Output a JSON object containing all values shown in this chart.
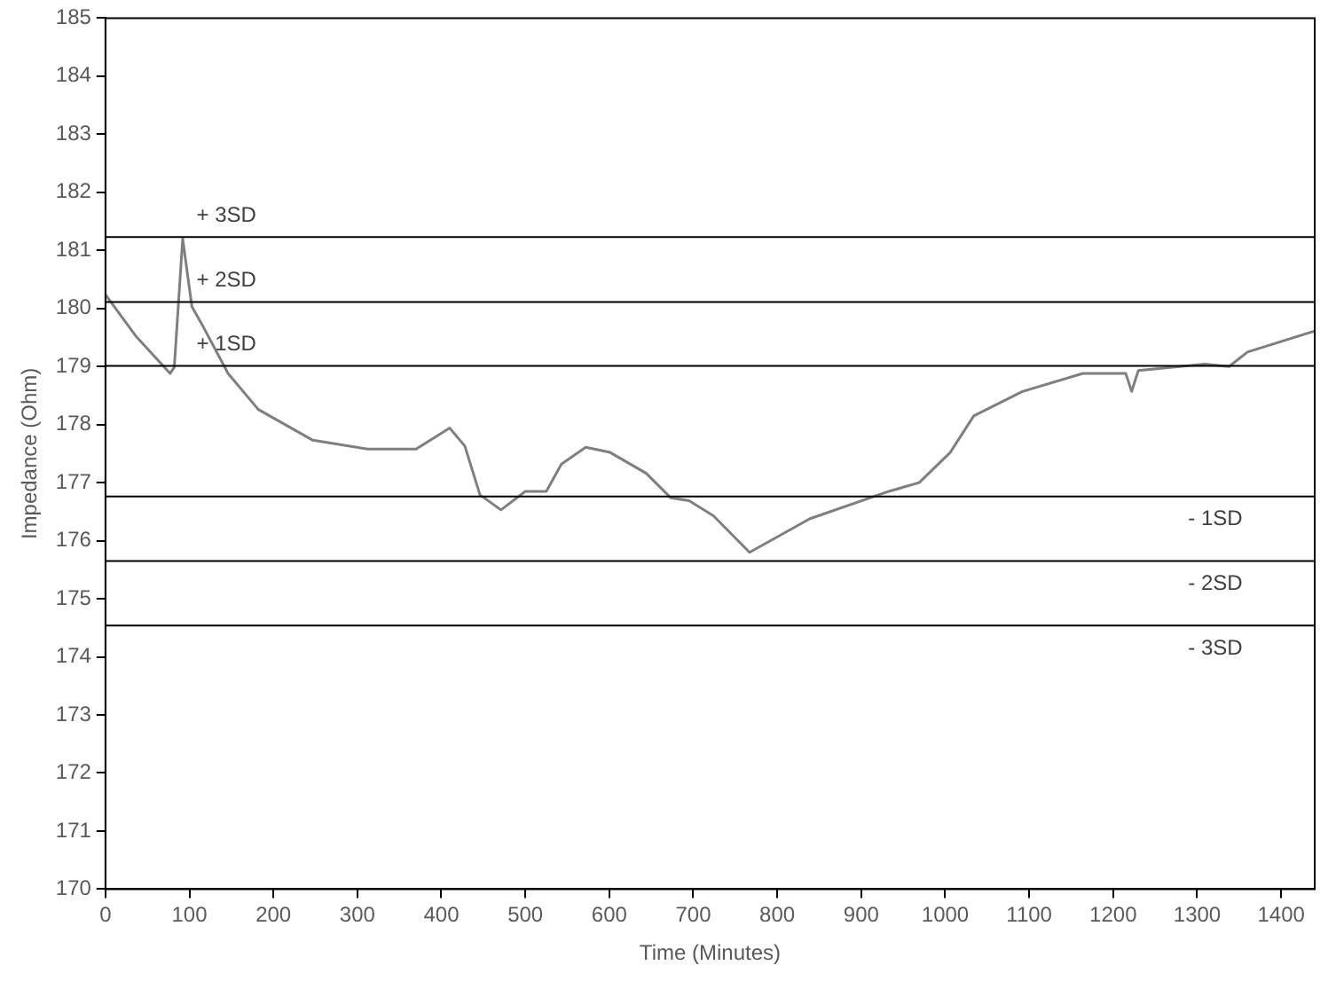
{
  "chart_data": {
    "type": "line",
    "xlabel": "Time (Minutes)",
    "ylabel": "Impedance (Ohm)",
    "x": [
      0,
      37,
      77,
      82,
      92,
      103,
      117,
      146,
      182,
      247,
      312,
      370,
      410,
      428,
      446,
      471,
      500,
      525,
      543,
      572,
      601,
      644,
      673,
      695,
      724,
      767,
      839,
      933,
      969,
      1006,
      1034,
      1092,
      1164,
      1215,
      1222,
      1230,
      1309,
      1338,
      1360,
      1440
    ],
    "series": [
      {
        "color": "#7f7f7f",
        "values": [
          180.24,
          179.51,
          178.88,
          178.99,
          181.2,
          180.03,
          179.67,
          178.88,
          178.26,
          177.73,
          177.58,
          177.58,
          177.94,
          177.63,
          176.79,
          176.53,
          176.85,
          176.85,
          177.32,
          177.61,
          177.52,
          177.16,
          176.74,
          176.69,
          176.43,
          175.8,
          176.38,
          176.85,
          177.0,
          177.52,
          178.15,
          178.57,
          178.88,
          178.88,
          178.57,
          178.93,
          179.04,
          179.0,
          179.25,
          179.61
        ]
      }
    ],
    "xlim": [
      0,
      1440
    ],
    "xticks": [
      0,
      100,
      200,
      300,
      400,
      500,
      600,
      700,
      800,
      900,
      1000,
      1100,
      1200,
      1300,
      1400
    ],
    "ylim": [
      170,
      185
    ],
    "yticks": [
      170,
      171,
      172,
      173,
      174,
      175,
      176,
      177,
      178,
      179,
      180,
      181,
      182,
      183,
      184,
      185
    ],
    "grid": false,
    "legend": false,
    "marker": "none",
    "line_style": "solid",
    "ref_lines": [
      {
        "axis": "y",
        "value": 181.23,
        "label": "+ 3SD"
      },
      {
        "axis": "y",
        "value": 180.11,
        "label": "+ 2SD"
      },
      {
        "axis": "y",
        "value": 179.01,
        "label": "+ 1SD"
      },
      {
        "axis": "y",
        "value": 176.76,
        "label": "- 1SD"
      },
      {
        "axis": "y",
        "value": 175.65,
        "label": "- 2SD"
      },
      {
        "axis": "y",
        "value": 174.54,
        "label": "- 3SD"
      }
    ]
  }
}
